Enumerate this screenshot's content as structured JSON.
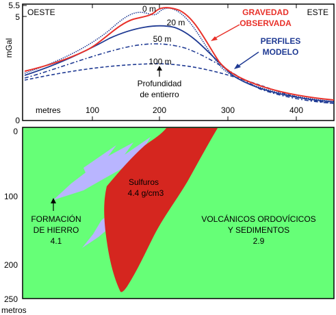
{
  "top_panel": {
    "y_axis_label": "mGal",
    "y_ticks": [
      "5.5",
      "5",
      "0"
    ],
    "x_axis_label": "metres",
    "x_ticks": [
      "100",
      "200",
      "300",
      "400"
    ],
    "west_label": "OESTE",
    "east_label": "ESTE",
    "observed_label_line1": "GRAVEDAD",
    "observed_label_line2": "OBSERVADA",
    "model_label_line1": "PERFILES",
    "model_label_line2": "MODELO",
    "depth_labels": [
      "0 m",
      "20 m",
      "50 m",
      "100 m"
    ],
    "depth_caption_line1": "Profundidad",
    "depth_caption_line2": "de entierro",
    "colors": {
      "observed": "#e8312a",
      "model": "#1f3a93",
      "frame": "#000000"
    }
  },
  "bottom_panel": {
    "y_ticks": [
      "0",
      "100",
      "200",
      "250"
    ],
    "y_axis_label": "metros",
    "sulfide_label_line1": "Sulfuros",
    "sulfide_label_line2": "4.4 g/cm3",
    "iron_label_line1": "FORMACIÓN",
    "iron_label_line2": "DE HIERRO",
    "iron_label_line3": "4.1",
    "volcanic_label_line1": "VOLCÁNICOS ORDOVÍCICOS",
    "volcanic_label_line2": "Y SEDIMENTOS",
    "volcanic_label_line3": "2.9",
    "colors": {
      "background": "#66ff77",
      "sulfide": "#d5261f",
      "iron": "#b9b5ff"
    }
  }
}
